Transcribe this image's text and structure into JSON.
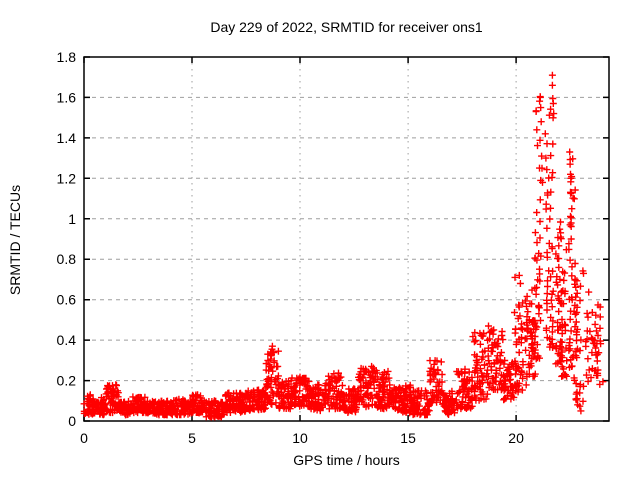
{
  "figure": {
    "background": "#ffffff",
    "text_color": "#000000",
    "border_color": "#000000",
    "grid_color": "#9e9e9e"
  },
  "chart_data": {
    "type": "scatter",
    "title": "Day 229 of 2022, SRMTID for receiver ons1",
    "xlabel": "GPS time / hours",
    "ylabel": "SRMTID / TECUs",
    "series_name": "SRMTID",
    "xlim": [
      0,
      24.3
    ],
    "ylim": [
      0,
      1.8
    ],
    "xticks": {
      "values": [
        0,
        5,
        10,
        15,
        20
      ],
      "labels": [
        "0",
        "5",
        "10",
        "15",
        "20"
      ]
    },
    "yticks": {
      "values": [
        0,
        0.2,
        0.4,
        0.6,
        0.8,
        1.0,
        1.2,
        1.4,
        1.6,
        1.8
      ],
      "labels": [
        "0",
        "0.2",
        "0.4",
        "0.6",
        "0.8",
        "1",
        "1.2",
        "1.4",
        "1.6",
        "1.8"
      ]
    },
    "grid": {
      "visible": true,
      "h_dash": "4 4",
      "v_dash": "1.5 4.5"
    },
    "legend": {
      "visible": false
    },
    "marker": {
      "shape": "plus",
      "color": "#ff0000",
      "size": 7,
      "stroke_width": 1.4
    },
    "seed": 229,
    "point_bands": [
      [
        0.0,
        0.5,
        0.03,
        0.13,
        40
      ],
      [
        0.5,
        1.0,
        0.03,
        0.12,
        40
      ],
      [
        1.0,
        1.6,
        0.04,
        0.18,
        55
      ],
      [
        1.6,
        2.2,
        0.03,
        0.1,
        50
      ],
      [
        2.2,
        3.0,
        0.04,
        0.12,
        65
      ],
      [
        3.0,
        4.0,
        0.03,
        0.1,
        80
      ],
      [
        4.0,
        5.0,
        0.03,
        0.11,
        80
      ],
      [
        5.0,
        5.6,
        0.04,
        0.13,
        50
      ],
      [
        5.6,
        6.5,
        0.02,
        0.1,
        75
      ],
      [
        6.5,
        7.5,
        0.04,
        0.14,
        85
      ],
      [
        7.5,
        8.4,
        0.05,
        0.16,
        75
      ],
      [
        8.4,
        9.0,
        0.08,
        0.36,
        55
      ],
      [
        9.0,
        9.6,
        0.06,
        0.2,
        55
      ],
      [
        9.6,
        10.5,
        0.07,
        0.22,
        80
      ],
      [
        10.5,
        11.2,
        0.05,
        0.18,
        60
      ],
      [
        11.2,
        12.0,
        0.06,
        0.24,
        70
      ],
      [
        12.0,
        12.7,
        0.04,
        0.16,
        60
      ],
      [
        12.7,
        13.4,
        0.07,
        0.28,
        65
      ],
      [
        13.4,
        14.2,
        0.06,
        0.25,
        70
      ],
      [
        14.2,
        15.2,
        0.04,
        0.18,
        80
      ],
      [
        15.2,
        16.0,
        0.03,
        0.15,
        65
      ],
      [
        16.0,
        16.6,
        0.08,
        0.3,
        50
      ],
      [
        16.6,
        17.2,
        0.03,
        0.15,
        50
      ],
      [
        17.2,
        18.0,
        0.06,
        0.26,
        65
      ],
      [
        18.0,
        18.7,
        0.1,
        0.44,
        60
      ],
      [
        18.7,
        19.4,
        0.15,
        0.47,
        60
      ],
      [
        19.4,
        19.9,
        0.1,
        0.3,
        45
      ],
      [
        19.9,
        20.5,
        0.14,
        0.6,
        50
      ],
      [
        20.5,
        20.9,
        0.22,
        0.68,
        45
      ],
      [
        20.9,
        21.25,
        0.3,
        1.62,
        42
      ],
      [
        21.25,
        21.75,
        0.35,
        1.55,
        48
      ],
      [
        21.75,
        22.1,
        0.28,
        1.05,
        40
      ],
      [
        22.1,
        22.35,
        0.22,
        0.85,
        30
      ],
      [
        22.35,
        22.75,
        0.2,
        1.3,
        45
      ],
      [
        22.75,
        23.2,
        0.05,
        0.75,
        35
      ],
      [
        23.2,
        24.05,
        0.18,
        0.65,
        45
      ]
    ],
    "highlight_points": [
      [
        1.32,
        0.175
      ],
      [
        8.68,
        0.33
      ],
      [
        8.7,
        0.355
      ],
      [
        8.72,
        0.37
      ],
      [
        8.75,
        0.34
      ],
      [
        19.95,
        0.71
      ],
      [
        20.15,
        0.72
      ],
      [
        20.2,
        0.68
      ],
      [
        21.12,
        1.6
      ],
      [
        21.14,
        1.55
      ],
      [
        21.16,
        1.48
      ],
      [
        21.18,
        1.31
      ],
      [
        21.2,
        1.25
      ],
      [
        21.22,
        1.18
      ],
      [
        21.35,
        1.42
      ],
      [
        21.38,
        1.3
      ],
      [
        21.68,
        1.71
      ],
      [
        21.68,
        1.66
      ],
      [
        21.7,
        1.595
      ],
      [
        21.72,
        1.57
      ],
      [
        21.74,
        1.52
      ],
      [
        21.7,
        1.37
      ],
      [
        22.48,
        1.33
      ],
      [
        22.5,
        1.27
      ],
      [
        22.52,
        1.22
      ],
      [
        22.54,
        1.2
      ],
      [
        22.56,
        1.13
      ],
      [
        22.58,
        1.05
      ],
      [
        22.5,
        0.97
      ],
      [
        22.55,
        0.9
      ],
      [
        22.85,
        0.08
      ],
      [
        23.0,
        0.05
      ]
    ]
  }
}
